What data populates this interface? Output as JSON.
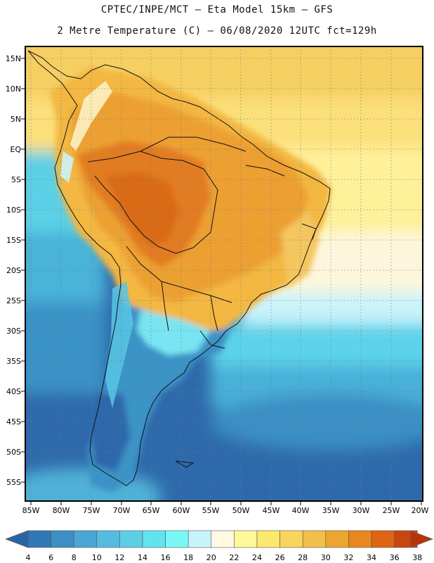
{
  "header": {
    "line1": "CPTEC/INPE/MCT –  Eta Model 15km – GFS",
    "line2": "2 Metre Temperature (C) – 06/08/2020 12UTC fct=129h"
  },
  "map": {
    "lat_labels": [
      "15N",
      "10N",
      "5N",
      "EQ",
      "5S",
      "10S",
      "15S",
      "20S",
      "25S",
      "30S",
      "35S",
      "40S",
      "45S",
      "50S",
      "55S"
    ],
    "lon_labels": [
      "85W",
      "80W",
      "75W",
      "70W",
      "65W",
      "60W",
      "55W",
      "50W",
      "45W",
      "40W",
      "35W",
      "30W",
      "25W",
      "20W"
    ]
  },
  "colorbar": {
    "labels": [
      "4",
      "6",
      "8",
      "10",
      "12",
      "14",
      "16",
      "18",
      "20",
      "22",
      "24",
      "26",
      "28",
      "30",
      "32",
      "34",
      "36",
      "38"
    ],
    "colors": [
      "#2b64a4",
      "#3178b6",
      "#3b8fc4",
      "#4aa6d2",
      "#56bcdf",
      "#5ccfe7",
      "#62e3ee",
      "#79f7f6",
      "#c9f3fa",
      "#fdf9e3",
      "#fff89a",
      "#fde86e",
      "#f9d55c",
      "#f1c04a",
      "#eca62f",
      "#e8871f",
      "#dd6513",
      "#c8470c",
      "#b8340a"
    ]
  }
}
